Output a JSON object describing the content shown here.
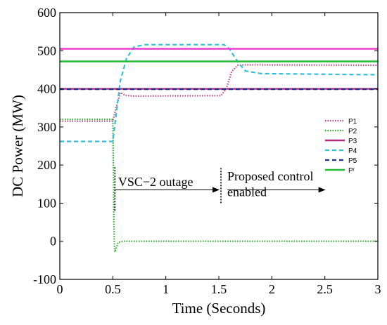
{
  "chart_data": {
    "type": "line",
    "xlabel": "Time (Seconds)",
    "ylabel": "DC  Power (MW)",
    "xlim": [
      0,
      3
    ],
    "ylim": [
      -100,
      600
    ],
    "x_ticks": [
      0,
      0.5,
      1,
      1.5,
      2,
      2.5,
      3
    ],
    "x_tick_labels": [
      "0",
      "0.5",
      "1",
      "1.5",
      "2",
      "2.5",
      "3"
    ],
    "y_ticks": [
      -100,
      0,
      100,
      200,
      300,
      400,
      500,
      600
    ],
    "y_tick_labels": [
      "-100",
      "0",
      "100",
      "200",
      "300",
      "400",
      "500",
      "600"
    ],
    "grid": false,
    "legend_position": "right",
    "series": [
      {
        "name": "P1",
        "color": "#c2407a",
        "style": "dotted",
        "points": [
          [
            0,
            315
          ],
          [
            0.5,
            315
          ],
          [
            0.53,
            350
          ],
          [
            0.57,
            390
          ],
          [
            0.62,
            383
          ],
          [
            0.7,
            381
          ],
          [
            1.52,
            382
          ],
          [
            1.57,
            400
          ],
          [
            1.62,
            445
          ],
          [
            1.68,
            462
          ],
          [
            1.75,
            463
          ],
          [
            3,
            462
          ]
        ]
      },
      {
        "name": "P2",
        "color": "#22aa22",
        "style": "dotted",
        "points": [
          [
            0,
            320
          ],
          [
            0.5,
            320
          ],
          [
            0.505,
            190
          ],
          [
            0.51,
            50
          ],
          [
            0.515,
            -10
          ],
          [
            0.52,
            -28
          ],
          [
            0.55,
            -3
          ],
          [
            0.6,
            0
          ],
          [
            3,
            0
          ]
        ]
      },
      {
        "name": "P3",
        "color": "#b02a80",
        "style": "solid",
        "points": [
          [
            0,
            400
          ],
          [
            3,
            400
          ]
        ]
      },
      {
        "name": "P4",
        "color": "#30c0d8",
        "style": "dashed",
        "points": [
          [
            0,
            262
          ],
          [
            0.5,
            262
          ],
          [
            0.53,
            330
          ],
          [
            0.57,
            420
          ],
          [
            0.63,
            480
          ],
          [
            0.7,
            510
          ],
          [
            0.8,
            516
          ],
          [
            1.55,
            516
          ],
          [
            1.6,
            505
          ],
          [
            1.68,
            470
          ],
          [
            1.75,
            447
          ],
          [
            1.9,
            440
          ],
          [
            3,
            437
          ]
        ]
      },
      {
        "name": "P5",
        "color": "#223388",
        "style": "dashed",
        "points": [
          [
            0,
            399
          ],
          [
            3,
            399
          ]
        ]
      },
      {
        "name": "Pʳ",
        "color": "#22bb33",
        "style": "solid",
        "points": [
          [
            0,
            472
          ],
          [
            3,
            472
          ]
        ]
      },
      {
        "name": "",
        "color": "#ee33cc",
        "style": "solid",
        "points": [
          [
            0,
            505
          ],
          [
            3,
            505
          ]
        ]
      }
    ],
    "annotations": [
      {
        "text": "VSC−2 outage",
        "x": 0.55,
        "y": 145
      },
      {
        "text": "Proposed control",
        "x": 1.58,
        "y": 160
      },
      {
        "text": "enabled",
        "x": 1.58,
        "y": 118
      }
    ],
    "arrows": [
      {
        "from": [
          0.52,
          135
        ],
        "to": [
          1.5,
          135
        ]
      },
      {
        "from": [
          1.58,
          135
        ],
        "to": [
          2.5,
          135
        ]
      }
    ],
    "markers": [
      {
        "type": "vertical-dotted",
        "x": 1.52,
        "y_from": 100,
        "y_to": 195
      },
      {
        "type": "vertical-dotted",
        "x": 0.52,
        "y_from": 80,
        "y_to": 195
      }
    ]
  }
}
